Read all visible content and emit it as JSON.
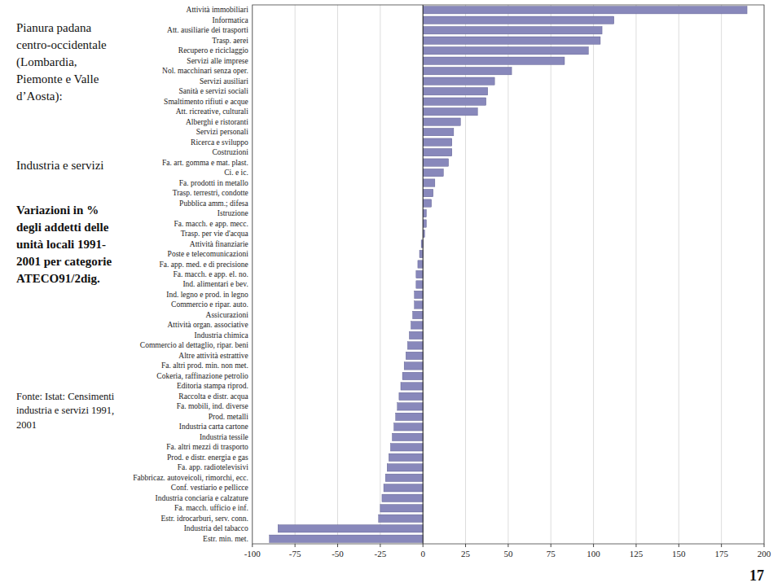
{
  "chart_data": {
    "type": "bar",
    "orientation": "horizontal",
    "categories": [
      "Attività immobiliari",
      "Informatica",
      "Att. ausiliarie dei trasporti",
      "Trasp. aerei",
      "Recupero e riciclaggio",
      "Servizi alle imprese",
      "Nol. macchinari senza oper.",
      "Servizi ausiliari",
      "Sanità e servizi sociali",
      "Smaltimento rifiuti e acque",
      "Att. ricreative, culturali",
      "Alberghi e ristoranti",
      "Servizi personali",
      "Ricerca e sviluppo",
      "Costruzioni",
      "Fa. art. gomma e mat. plast.",
      "Ci. e ic.",
      "Fa. prodotti in metallo",
      "Trasp. terrestri, condotte",
      "Pubblica amm.; difesa",
      "Istruzione",
      "Fa. macch. e app. mecc.",
      "Trasp. per vie d'acqua",
      "Attività finanziarie",
      "Poste e telecomunicazioni",
      "Fa. app. med. e di precisione",
      "Fa. macch. e app. el. no.",
      "Ind. alimentari e bev.",
      "Ind. legno e prod. in legno",
      "Commercio e ripar. auto.",
      "Assicurazioni",
      "Attività organ. associative",
      "Industria chimica",
      "Commercio al dettaglio, ripar. beni",
      "Altre attività estrattive",
      "Fa. altri prod. min. non met.",
      "Cokeria, raffinazione petrolio",
      "Editoria stampa riprod.",
      "Raccolta e distr. acqua",
      "Fa. mobili, ind. diverse",
      "Prod. metalli",
      "Industria carta cartone",
      "Industria tessile",
      "Fa. altri mezzi di trasporto",
      "Prod. e distr. energia e gas",
      "Fa. app. radiotelevisivi",
      "Fabbricaz. autoveicoli, rimorchi, ecc.",
      "Conf. vestiario e pellicce",
      "Industria conciaria e calzature",
      "Fa. macch. ufficio e inf.",
      "Estr. idrocarburi, serv. conn.",
      "Industria del tabacco",
      "Estr. min. met."
    ],
    "values": [
      190,
      112,
      105,
      104,
      97,
      83,
      52,
      42,
      38,
      37,
      32,
      22,
      18,
      17,
      17,
      15,
      12,
      7,
      6,
      5,
      2,
      2,
      1,
      -1,
      -2,
      -3,
      -4,
      -4,
      -5,
      -5,
      -6,
      -7,
      -8,
      -9,
      -10,
      -11,
      -12,
      -13,
      -14,
      -15,
      -16,
      -17,
      -18,
      -19,
      -20,
      -21,
      -22,
      -23,
      -24,
      -25,
      -26,
      -85,
      -90
    ],
    "color": "#8888bb",
    "xlim": [
      -100,
      200
    ],
    "xticks": [
      -100,
      -75,
      -50,
      -25,
      0,
      25,
      50,
      75,
      100,
      125,
      150,
      175,
      200
    ],
    "grid": true,
    "annotations": [
      [
        "Pianura padana",
        "centro-occidentale",
        "(Lombardia,",
        "Piemonte e Valle",
        "d’Aosta):"
      ],
      [
        "Industria e servizi"
      ],
      [
        "Variazioni in %",
        "degli addetti delle",
        "unità locali 1991-",
        "2001 per categorie",
        "ATECO91/2dig."
      ],
      [
        "Fonte: Istat: Censimenti",
        "industria e servizi 1991,",
        "2001"
      ],
      [
        "17"
      ]
    ]
  }
}
